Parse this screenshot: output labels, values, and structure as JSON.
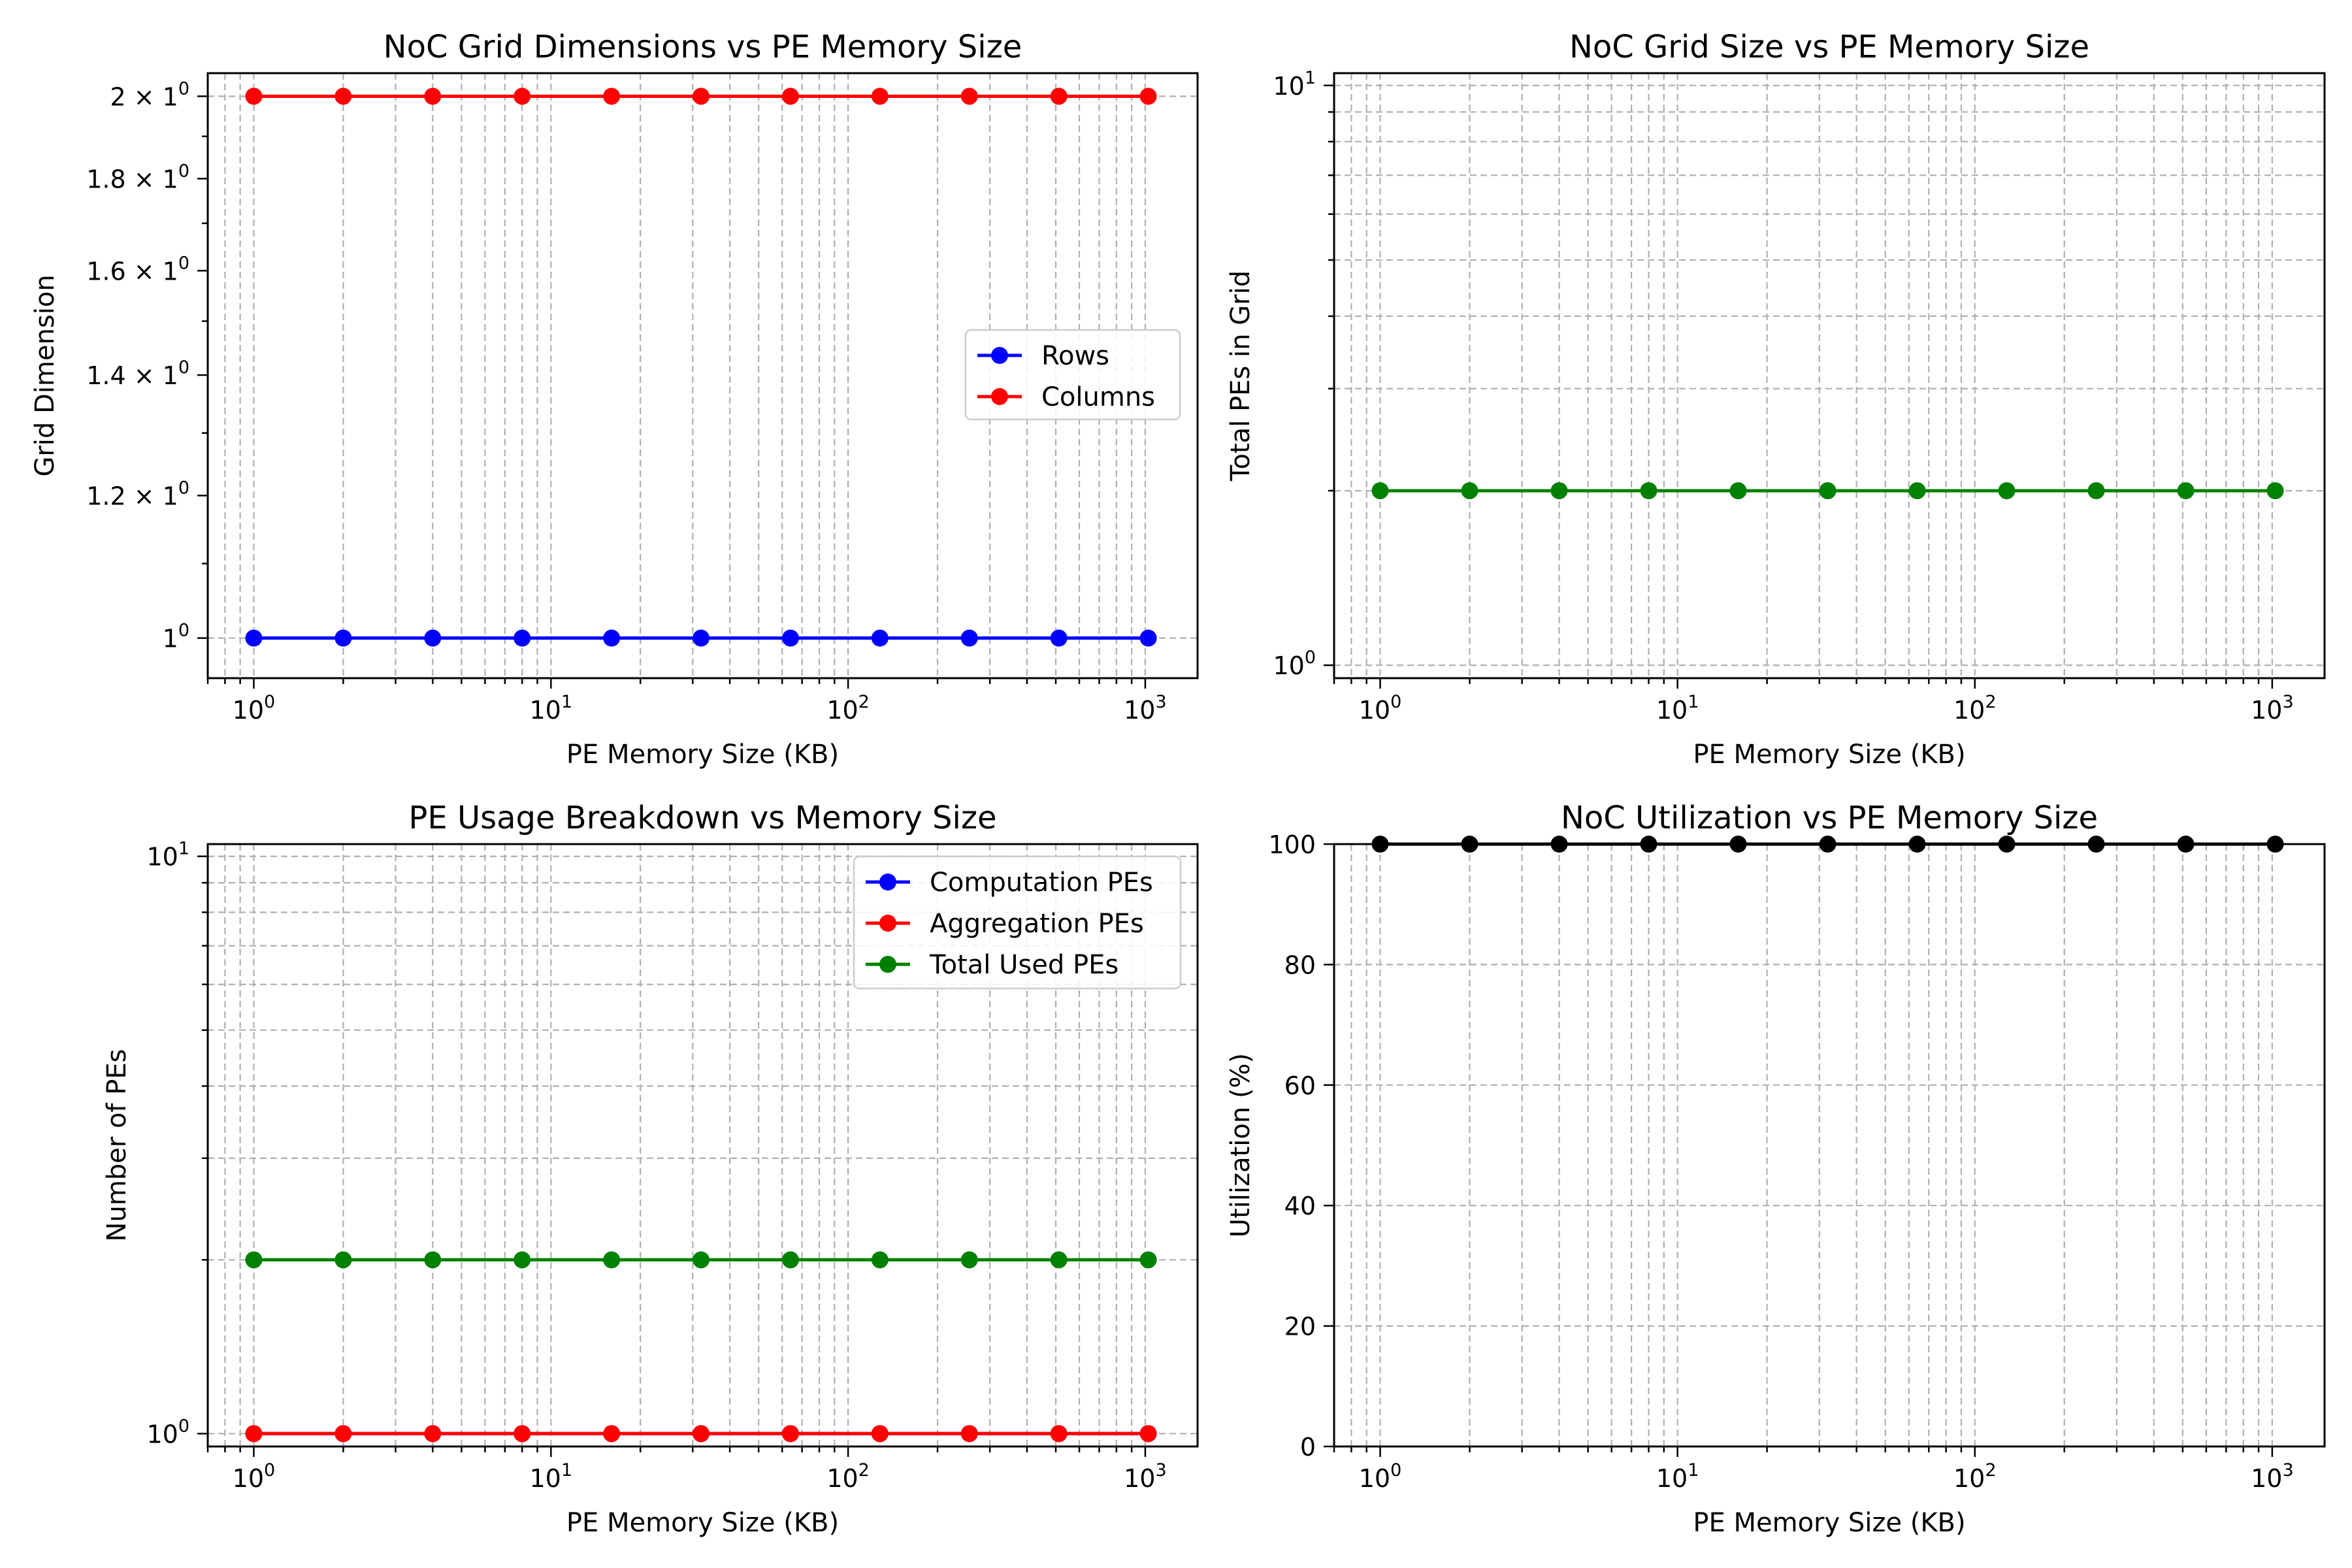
{
  "chart_data": [
    {
      "type": "line",
      "title": "NoC Grid Dimensions vs PE Memory Size",
      "xlabel": "PE Memory Size (KB)",
      "ylabel": "Grid Dimension",
      "xscale": "log",
      "yscale": "log",
      "xlim": [
        0.7,
        1500
      ],
      "ylim": [
        0.95,
        2.06
      ],
      "grid": "major and minor, dashed",
      "legend": "center-right",
      "x": [
        1,
        2,
        4,
        8,
        16,
        32,
        64,
        128,
        256,
        512,
        1024
      ],
      "x_ticks": [
        {
          "base": "10",
          "exp": "0"
        },
        {
          "base": "10",
          "exp": "1"
        },
        {
          "base": "10",
          "exp": "2"
        },
        {
          "base": "10",
          "exp": "3"
        }
      ],
      "y_ticks": [
        {
          "mant": "1",
          "exp": "0"
        },
        {
          "mant": "1.2 × 1",
          "exp": "0"
        },
        {
          "mant": "1.4 × 1",
          "exp": "0"
        },
        {
          "mant": "1.6 × 1",
          "exp": "0"
        },
        {
          "mant": "1.8 × 1",
          "exp": "0"
        },
        {
          "mant": "2 × 1",
          "exp": "0"
        }
      ],
      "series": [
        {
          "name": "Rows",
          "color": "#0000ff",
          "values": [
            1,
            1,
            1,
            1,
            1,
            1,
            1,
            1,
            1,
            1,
            1
          ]
        },
        {
          "name": "Columns",
          "color": "#ff0000",
          "values": [
            2,
            2,
            2,
            2,
            2,
            2,
            2,
            2,
            2,
            2,
            2
          ]
        }
      ]
    },
    {
      "type": "line",
      "title": "NoC Grid Size vs PE Memory Size",
      "xlabel": "PE Memory Size (KB)",
      "ylabel": "Total PEs in Grid",
      "xscale": "log",
      "yscale": "log",
      "xlim": [
        0.7,
        1500
      ],
      "ylim": [
        0.95,
        10.5
      ],
      "grid": "major and minor, dashed",
      "x": [
        1,
        2,
        4,
        8,
        16,
        32,
        64,
        128,
        256,
        512,
        1024
      ],
      "x_ticks": [
        {
          "base": "10",
          "exp": "0"
        },
        {
          "base": "10",
          "exp": "1"
        },
        {
          "base": "10",
          "exp": "2"
        },
        {
          "base": "10",
          "exp": "3"
        }
      ],
      "y_ticks": [
        {
          "base": "10",
          "exp": "0"
        },
        {
          "base": "10",
          "exp": "1"
        }
      ],
      "series": [
        {
          "name": "",
          "color": "#008000",
          "values": [
            2,
            2,
            2,
            2,
            2,
            2,
            2,
            2,
            2,
            2,
            2
          ]
        }
      ]
    },
    {
      "type": "line",
      "title": "PE Usage Breakdown vs Memory Size",
      "xlabel": "PE Memory Size (KB)",
      "ylabel": "Number of PEs",
      "xscale": "log",
      "yscale": "log",
      "xlim": [
        0.7,
        1500
      ],
      "ylim": [
        0.95,
        10.5
      ],
      "grid": "major and minor, dashed",
      "legend": "top-right",
      "x": [
        1,
        2,
        4,
        8,
        16,
        32,
        64,
        128,
        256,
        512,
        1024
      ],
      "x_ticks": [
        {
          "base": "10",
          "exp": "0"
        },
        {
          "base": "10",
          "exp": "1"
        },
        {
          "base": "10",
          "exp": "2"
        },
        {
          "base": "10",
          "exp": "3"
        }
      ],
      "y_ticks": [
        {
          "base": "10",
          "exp": "0"
        },
        {
          "base": "10",
          "exp": "1"
        }
      ],
      "series": [
        {
          "name": "Computation PEs",
          "color": "#0000ff",
          "values": [
            1,
            1,
            1,
            1,
            1,
            1,
            1,
            1,
            1,
            1,
            1
          ]
        },
        {
          "name": "Aggregation PEs",
          "color": "#ff0000",
          "values": [
            1,
            1,
            1,
            1,
            1,
            1,
            1,
            1,
            1,
            1,
            1
          ]
        },
        {
          "name": "Total Used PEs",
          "color": "#008000",
          "values": [
            2,
            2,
            2,
            2,
            2,
            2,
            2,
            2,
            2,
            2,
            2
          ]
        }
      ]
    },
    {
      "type": "line",
      "title": "NoC Utilization vs PE Memory Size",
      "xlabel": "PE Memory Size (KB)",
      "ylabel": "Utilization (%)",
      "xscale": "log",
      "yscale": "linear",
      "xlim": [
        0.7,
        1500
      ],
      "ylim": [
        0,
        100
      ],
      "grid": "major and minor, dashed",
      "x": [
        1,
        2,
        4,
        8,
        16,
        32,
        64,
        128,
        256,
        512,
        1024
      ],
      "x_ticks": [
        {
          "base": "10",
          "exp": "0"
        },
        {
          "base": "10",
          "exp": "1"
        },
        {
          "base": "10",
          "exp": "2"
        },
        {
          "base": "10",
          "exp": "3"
        }
      ],
      "y_ticks": [
        {
          "text": "0"
        },
        {
          "text": "20"
        },
        {
          "text": "40"
        },
        {
          "text": "60"
        },
        {
          "text": "80"
        },
        {
          "text": "100"
        }
      ],
      "series": [
        {
          "name": "",
          "color": "#000000",
          "values": [
            100,
            100,
            100,
            100,
            100,
            100,
            100,
            100,
            100,
            100,
            100
          ]
        }
      ]
    }
  ]
}
